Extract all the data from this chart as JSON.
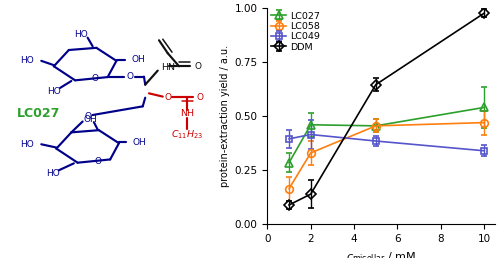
{
  "ylabel": "protein-extraction yield / a.u.",
  "xlim": [
    0,
    10.5
  ],
  "ylim": [
    0.0,
    1.0
  ],
  "xticks": [
    0,
    2,
    4,
    6,
    8,
    10
  ],
  "yticks": [
    0.0,
    0.25,
    0.5,
    0.75,
    1.0
  ],
  "series": [
    {
      "label": "LC027",
      "color": "#2ca02c",
      "marker": "^",
      "x": [
        1,
        2,
        5,
        10
      ],
      "y": [
        0.285,
        0.46,
        0.455,
        0.54
      ],
      "yerr": [
        0.045,
        0.055,
        0.03,
        0.095
      ]
    },
    {
      "label": "LC058",
      "color": "#ff7f0e",
      "marker": "o",
      "x": [
        1,
        2,
        5,
        10
      ],
      "y": [
        0.165,
        0.33,
        0.455,
        0.47
      ],
      "yerr": [
        0.055,
        0.055,
        0.03,
        0.055
      ]
    },
    {
      "label": "LC049",
      "color": "#5555cc",
      "marker": "s",
      "x": [
        1,
        2,
        5,
        10
      ],
      "y": [
        0.395,
        0.415,
        0.385,
        0.34
      ],
      "yerr": [
        0.04,
        0.065,
        0.025,
        0.025
      ]
    },
    {
      "label": "DDM",
      "color": "#000000",
      "marker": "D",
      "x": [
        1,
        2,
        5,
        10
      ],
      "y": [
        0.09,
        0.14,
        0.645,
        0.975
      ],
      "yerr": [
        0.02,
        0.065,
        0.03,
        0.02
      ]
    }
  ],
  "background_color": "#ffffff",
  "figsize": [
    5.0,
    2.58
  ],
  "dpi": 100
}
